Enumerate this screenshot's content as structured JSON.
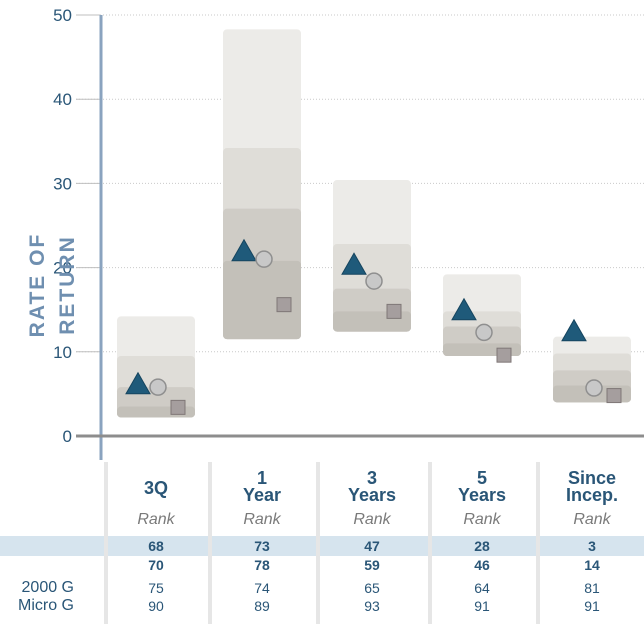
{
  "chart_data": {
    "type": "floating-box",
    "ylabel": "RATE OF RETURN",
    "ylim": [
      0,
      50
    ],
    "yticks": [
      0,
      10,
      20,
      30,
      40,
      50
    ],
    "categories": [
      {
        "line1": "3Q",
        "line2": ""
      },
      {
        "line1": "1",
        "line2": "Year"
      },
      {
        "line1": "3",
        "line2": "Years"
      },
      {
        "line1": "5",
        "line2": "Years"
      },
      {
        "line1": "Since",
        "line2": "Incep."
      }
    ],
    "bands": [
      {
        "low": 2.2,
        "p25": 3.5,
        "p50": 5.8,
        "p75": 9.5,
        "high": 14.2
      },
      {
        "low": 11.5,
        "p25": 20.8,
        "p50": 27.0,
        "p75": 34.2,
        "high": 48.3
      },
      {
        "low": 12.4,
        "p25": 14.8,
        "p50": 17.5,
        "p75": 22.8,
        "high": 30.4
      },
      {
        "low": 9.5,
        "p25": 11.0,
        "p50": 13.0,
        "p75": 14.8,
        "high": 19.2
      },
      {
        "low": 4.0,
        "p25": 6.0,
        "p50": 7.8,
        "p75": 9.8,
        "high": 11.8
      }
    ],
    "series": [
      {
        "marker": "triangle",
        "color": "#1f5a7a",
        "values": [
          6.2,
          22.0,
          20.4,
          15.0,
          12.5
        ]
      },
      {
        "marker": "circle",
        "color": "#c8c8c8",
        "values": [
          5.8,
          21.0,
          18.4,
          12.3,
          5.7
        ]
      },
      {
        "marker": "square",
        "color": "#a59e9e",
        "values": [
          3.4,
          15.6,
          14.8,
          9.6,
          4.8
        ]
      }
    ]
  },
  "table": {
    "rank_label": "Rank",
    "rows": [
      {
        "label": "",
        "bold": true,
        "highlight": true,
        "values": [
          "68",
          "73",
          "47",
          "28",
          "3"
        ]
      },
      {
        "label": "",
        "bold": true,
        "highlight": false,
        "values": [
          "70",
          "78",
          "59",
          "46",
          "14"
        ]
      },
      {
        "label": "2000 G",
        "bold": false,
        "highlight": false,
        "values": [
          "75",
          "74",
          "65",
          "64",
          "81"
        ]
      },
      {
        "label": "Micro G",
        "bold": false,
        "highlight": false,
        "values": [
          "90",
          "89",
          "93",
          "91",
          "91"
        ]
      }
    ]
  },
  "colors": {
    "axis": "#8aa3bf",
    "baseline": "#8d8d8d",
    "band_outer": "#ecebe8",
    "band_mid": "#dfddd8",
    "band_inner": "#cfccc6",
    "band_core": "#c3c0b9",
    "highlight_row": "#d6e4ee"
  }
}
